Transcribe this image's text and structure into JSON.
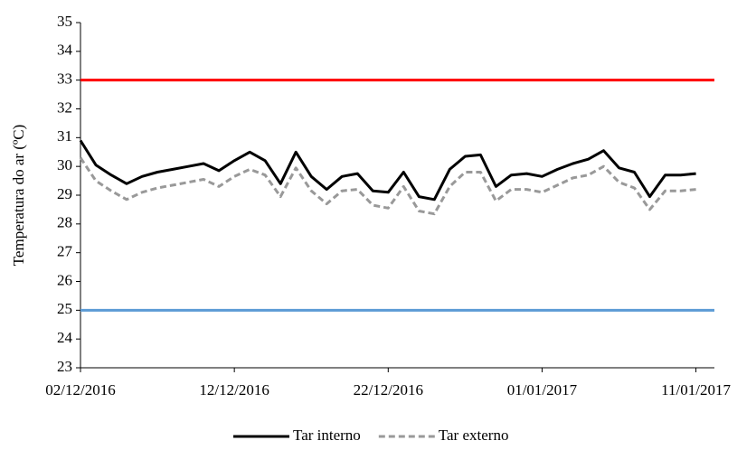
{
  "chart_data": {
    "type": "line",
    "y_label": "Temperatura do ar (ºC)",
    "x": [
      0,
      1,
      2,
      3,
      4,
      5,
      6,
      7,
      8,
      9,
      10,
      11,
      12,
      13,
      14,
      15,
      16,
      17,
      18,
      19,
      20,
      21,
      22,
      23,
      24,
      25,
      26,
      27,
      28,
      29,
      30,
      31,
      32,
      33,
      34,
      35,
      36,
      37,
      38,
      39,
      40
    ],
    "series": [
      {
        "name": "Tar interno",
        "color": "#000000",
        "dash": false,
        "values": [
          30.9,
          30.05,
          29.7,
          29.4,
          29.65,
          29.8,
          29.9,
          30.0,
          30.1,
          29.85,
          30.2,
          30.5,
          30.2,
          29.4,
          30.5,
          29.65,
          29.2,
          29.65,
          29.75,
          29.15,
          29.1,
          29.8,
          28.95,
          28.85,
          29.9,
          30.35,
          30.4,
          29.3,
          29.7,
          29.75,
          29.65,
          29.9,
          30.1,
          30.25,
          30.55,
          29.95,
          29.8,
          28.95,
          29.7,
          29.7,
          29.75
        ]
      },
      {
        "name": "Tar externo",
        "color": "#999999",
        "dash": true,
        "values": [
          30.3,
          29.5,
          29.15,
          28.85,
          29.1,
          29.25,
          29.35,
          29.45,
          29.55,
          29.3,
          29.65,
          29.9,
          29.7,
          28.95,
          29.95,
          29.15,
          28.7,
          29.15,
          29.2,
          28.65,
          28.55,
          29.3,
          28.45,
          28.35,
          29.3,
          29.8,
          29.8,
          28.8,
          29.2,
          29.2,
          29.1,
          29.35,
          29.6,
          29.7,
          30.0,
          29.45,
          29.25,
          28.5,
          29.15,
          29.15,
          29.2
        ]
      }
    ],
    "reference_lines": [
      {
        "value": 33,
        "color": "#ff0000"
      },
      {
        "value": 25,
        "color": "#5b9bd5"
      }
    ],
    "xlim": [
      0,
      41.2
    ],
    "xticks": [
      {
        "value": 0,
        "label": "02/12/2016"
      },
      {
        "value": 10,
        "label": "12/12/2016"
      },
      {
        "value": 20,
        "label": "22/12/2016"
      },
      {
        "value": 30,
        "label": "01/01/2017"
      },
      {
        "value": 40,
        "label": "11/01/2017"
      }
    ],
    "ylim": [
      23,
      35
    ],
    "yticks": [
      23,
      24,
      25,
      26,
      27,
      28,
      29,
      30,
      31,
      32,
      33,
      34,
      35
    ],
    "legend": "bottom"
  }
}
